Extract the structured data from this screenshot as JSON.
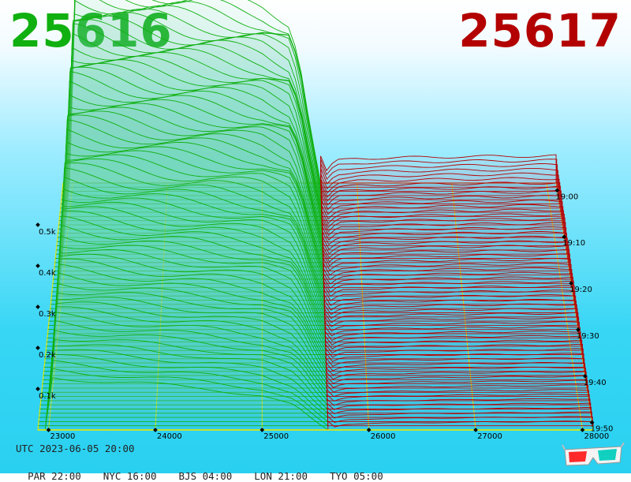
{
  "header": {
    "bid_price": "25616",
    "ask_price": "25617",
    "bid_color": "#10b010",
    "ask_color": "#b30000"
  },
  "footer": {
    "utc_text": "UTC 2023-06-05 20:00",
    "cities": [
      {
        "label": "PAR 22:00"
      },
      {
        "label": "NYC 16:00"
      },
      {
        "label": "BJS 04:00"
      },
      {
        "label": "LON 21:00"
      },
      {
        "label": "TYO 05:00"
      }
    ]
  },
  "icons": {
    "glasses": "3d-glasses-icon"
  },
  "chart_data": {
    "type": "area",
    "chart_kind": "3d-order-book-depth",
    "x": {
      "label": "",
      "ticks": [
        23000,
        24000,
        25000,
        26000,
        27000,
        28000
      ],
      "tick_labels": [
        "23000",
        "24000",
        "25000",
        "26000",
        "27000",
        "28000"
      ],
      "range": [
        22900,
        28100
      ]
    },
    "y": {
      "label": "",
      "ticks": [
        100,
        200,
        300,
        400,
        500
      ],
      "tick_labels": [
        "0.1k",
        "0.2k",
        "0.3k",
        "0.4k",
        "0.5k"
      ],
      "range": [
        0,
        520
      ]
    },
    "time": {
      "ticks": [
        "19:00",
        "19:10",
        "19:20",
        "19:30",
        "19:40",
        "19:50"
      ],
      "range": [
        "18:58",
        "19:59"
      ]
    },
    "mid_price": 25616.5,
    "bid_series": {
      "name": "bids",
      "color": "#10b010",
      "depth_at_price_oldest": [
        [
          23000,
          500
        ],
        [
          23500,
          480
        ],
        [
          24000,
          460
        ],
        [
          24500,
          445
        ],
        [
          25000,
          425
        ],
        [
          25300,
          395
        ],
        [
          25400,
          300
        ],
        [
          25500,
          150
        ],
        [
          25616,
          0
        ]
      ],
      "depth_at_price_newest": [
        [
          23000,
          130
        ],
        [
          23500,
          120
        ],
        [
          24000,
          110
        ],
        [
          24500,
          100
        ],
        [
          25000,
          85
        ],
        [
          25300,
          60
        ],
        [
          25400,
          40
        ],
        [
          25500,
          20
        ],
        [
          25616,
          0
        ]
      ]
    },
    "ask_series": {
      "name": "asks",
      "color": "#b30000",
      "depth_at_price_oldest": [
        [
          25617,
          0
        ],
        [
          25700,
          40
        ],
        [
          25800,
          55
        ],
        [
          26000,
          60
        ],
        [
          26500,
          62
        ],
        [
          27000,
          64
        ],
        [
          27500,
          65
        ],
        [
          28000,
          66
        ]
      ],
      "depth_at_price_newest": [
        [
          25617,
          0
        ],
        [
          25700,
          10
        ],
        [
          25800,
          14
        ],
        [
          26000,
          16
        ],
        [
          26500,
          18
        ],
        [
          27000,
          19
        ],
        [
          27500,
          20
        ],
        [
          28000,
          21
        ]
      ]
    },
    "grid": true
  }
}
